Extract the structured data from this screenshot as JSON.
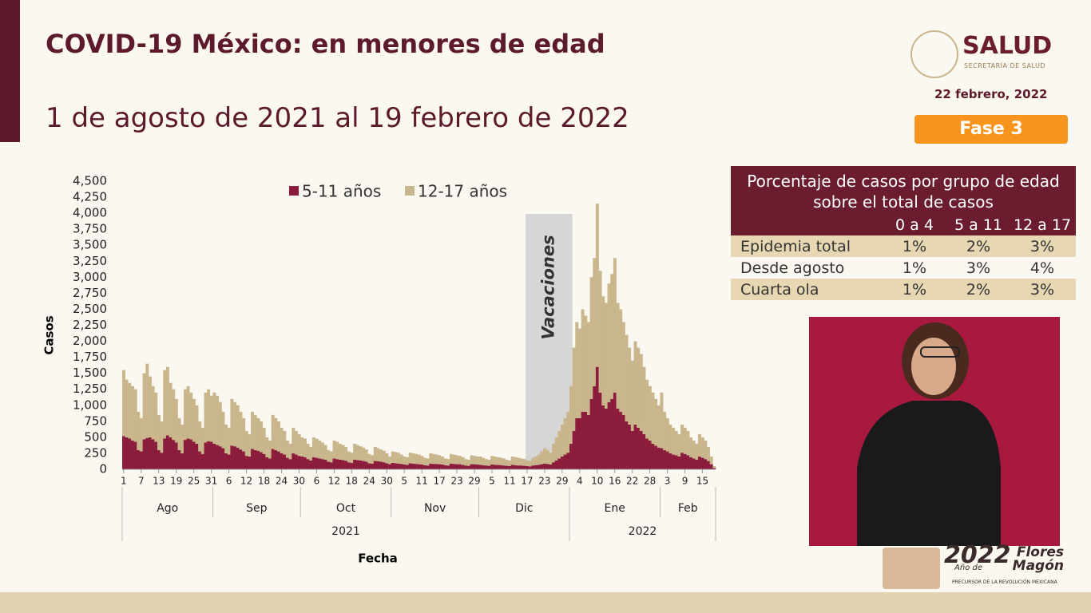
{
  "header": {
    "title": "COVID-19 México: en menores de edad",
    "subtitle": "1 de agosto de 2021 al 19 febrero de 2022",
    "brand": "SALUD",
    "brand_sub": "SECRETARÍA DE SALUD",
    "date": "22 febrero, 2022",
    "phase": "Fase 3"
  },
  "chart_data": {
    "type": "stacked-bar",
    "x_label": "Fecha",
    "y_label": "Casos",
    "categories": [
      "1",
      null,
      null,
      null,
      null,
      null,
      "7",
      null,
      null,
      null,
      null,
      null,
      "13",
      null,
      null,
      null,
      null,
      null,
      "19",
      null,
      null,
      null,
      null,
      null,
      "25",
      null,
      null,
      null,
      null,
      null,
      "31",
      null,
      null,
      null,
      null,
      null,
      "6",
      null,
      null,
      null,
      null,
      null,
      "12",
      null,
      null,
      null,
      null,
      null,
      "18",
      null,
      null,
      null,
      null,
      null,
      "24",
      null,
      null,
      null,
      null,
      null,
      "30",
      null,
      null,
      null,
      null,
      null,
      "6",
      null,
      null,
      null,
      null,
      null,
      "12",
      null,
      null,
      null,
      null,
      null,
      "18",
      null,
      null,
      null,
      null,
      null,
      "24",
      null,
      null,
      null,
      null,
      null,
      "30",
      null,
      null,
      null,
      null,
      null,
      "5",
      null,
      null,
      null,
      null,
      null,
      "11",
      null,
      null,
      null,
      null,
      null,
      "17",
      null,
      null,
      null,
      null,
      null,
      "23",
      null,
      null,
      null,
      null,
      null,
      "29",
      null,
      null,
      null,
      null,
      null,
      "5",
      null,
      null,
      null,
      null,
      null,
      "11",
      null,
      null,
      null,
      null,
      null,
      "17",
      null,
      null,
      null,
      null,
      null,
      "23",
      null,
      null,
      null,
      null,
      null,
      "29",
      null,
      null,
      null,
      null,
      null,
      "4",
      null,
      null,
      null,
      null,
      null,
      "10",
      null,
      null,
      null,
      null,
      null,
      "16",
      null,
      null,
      null,
      null,
      null,
      "22",
      null,
      null,
      null,
      null,
      null,
      "28",
      null,
      null,
      null,
      null,
      null,
      "3",
      null,
      null,
      null,
      null,
      null,
      "9",
      null,
      null,
      null,
      null,
      null,
      "15",
      null,
      null,
      null,
      null
    ],
    "years": [
      {
        "label": "2021",
        "months": [
          "Ago",
          "Sep",
          "Oct",
          "Nov",
          "Dic"
        ]
      },
      {
        "label": "2022",
        "months": [
          "Ene",
          "Feb"
        ]
      }
    ],
    "series": [
      {
        "name": "5-11 años",
        "color": "#8c1c3c",
        "values": [
          520,
          500,
          480,
          450,
          430,
          300,
          280,
          470,
          490,
          500,
          470,
          430,
          300,
          260,
          480,
          530,
          500,
          460,
          420,
          300,
          250,
          460,
          480,
          470,
          430,
          400,
          280,
          240,
          420,
          440,
          430,
          400,
          380,
          360,
          330,
          250,
          230,
          370,
          360,
          340,
          310,
          280,
          210,
          200,
          320,
          300,
          290,
          270,
          240,
          190,
          170,
          320,
          300,
          280,
          250,
          230,
          180,
          160,
          250,
          230,
          210,
          200,
          190,
          160,
          140,
          190,
          180,
          170,
          160,
          150,
          120,
          110,
          170,
          160,
          150,
          145,
          135,
          110,
          100,
          150,
          145,
          140,
          130,
          120,
          95,
          90,
          130,
          125,
          120,
          110,
          95,
          80,
          100,
          95,
          90,
          85,
          75,
          70,
          95,
          90,
          85,
          80,
          75,
          65,
          60,
          90,
          85,
          85,
          80,
          75,
          65,
          60,
          90,
          85,
          80,
          80,
          70,
          60,
          55,
          80,
          80,
          75,
          70,
          65,
          60,
          55,
          75,
          70,
          70,
          65,
          60,
          55,
          50,
          70,
          65,
          60,
          60,
          55,
          50,
          45,
          60,
          65,
          70,
          80,
          90,
          85,
          75,
          110,
          140,
          170,
          200,
          230,
          260,
          400,
          600,
          800,
          800,
          900,
          900,
          850,
          1100,
          1300,
          1600,
          1200,
          1000,
          950,
          1050,
          1100,
          1200,
          950,
          900,
          850,
          750,
          700,
          600,
          700,
          650,
          600,
          550,
          480,
          450,
          400,
          370,
          340,
          330,
          300,
          280,
          250,
          230,
          220,
          200,
          260,
          240,
          220,
          190,
          170,
          150,
          200,
          180,
          160,
          130,
          80,
          20
        ]
      },
      {
        "name": "12-17 años",
        "color": "#c9b68c",
        "values": [
          1030,
          900,
          870,
          850,
          820,
          600,
          520,
          1030,
          1160,
          950,
          830,
          770,
          550,
          490,
          1070,
          1070,
          850,
          790,
          680,
          500,
          450,
          790,
          820,
          730,
          670,
          600,
          470,
          410,
          780,
          810,
          720,
          800,
          770,
          690,
          570,
          450,
          420,
          730,
          690,
          660,
          590,
          520,
          390,
          350,
          580,
          550,
          510,
          480,
          410,
          310,
          280,
          530,
          500,
          470,
          400,
          370,
          270,
          240,
          400,
          370,
          340,
          300,
          290,
          240,
          210,
          310,
          300,
          280,
          260,
          230,
          180,
          170,
          280,
          270,
          250,
          235,
          215,
          170,
          160,
          250,
          235,
          220,
          210,
          190,
          145,
          130,
          220,
          205,
          190,
          180,
          155,
          120,
          180,
          175,
          170,
          145,
          125,
          120,
          165,
          160,
          155,
          150,
          135,
          115,
          110,
          160,
          155,
          145,
          140,
          125,
          105,
          100,
          150,
          145,
          140,
          130,
          120,
          100,
          95,
          140,
          130,
          125,
          130,
          115,
          100,
          95,
          135,
          130,
          120,
          115,
          110,
          95,
          90,
          130,
          125,
          120,
          110,
          105,
          90,
          85,
          120,
          135,
          160,
          200,
          240,
          215,
          185,
          290,
          360,
          430,
          500,
          570,
          640,
          900,
          1300,
          1500,
          1400,
          1600,
          1500,
          1450,
          1900,
          2000,
          2550,
          1900,
          1700,
          1650,
          1850,
          1950,
          2100,
          1650,
          1600,
          1450,
          1350,
          1200,
          1100,
          1300,
          1250,
          1200,
          1050,
          920,
          850,
          800,
          730,
          660,
          870,
          600,
          520,
          450,
          420,
          380,
          350,
          440,
          410,
          380,
          310,
          280,
          250,
          350,
          320,
          290,
          220,
          120,
          30
        ]
      }
    ],
    "ylim": [
      0,
      4500
    ],
    "yticks": [
      0,
      250,
      500,
      750,
      {
        "value": 1000,
        "label": "1,000"
      },
      {
        "value": 1250,
        "label": "1,250"
      },
      {
        "value": 1500,
        "label": "1,500"
      },
      {
        "value": 1750,
        "label": "1,750"
      },
      {
        "value": 2000,
        "label": "2,000"
      },
      {
        "value": 2250,
        "label": "2,250"
      },
      {
        "value": 2500,
        "label": "2,500"
      },
      {
        "value": 2750,
        "label": "2,750"
      },
      {
        "value": 3000,
        "label": "3,000"
      },
      {
        "value": 3250,
        "label": "3,250"
      },
      {
        "value": 3500,
        "label": "3,500"
      },
      {
        "value": 3750,
        "label": "3,750"
      },
      {
        "value": 4000,
        "label": "4,000"
      },
      {
        "value": 4250,
        "label": "4,250"
      },
      {
        "value": 4500,
        "label": "4,500"
      }
    ],
    "grid": false,
    "annotation": {
      "text": "Vacaciones",
      "x_range": [
        138,
        153
      ]
    }
  },
  "table": {
    "title": "Porcentaje de casos por grupo de edad sobre el total de casos",
    "columns": [
      "0 a 4",
      "5 a 11",
      "12 a 17"
    ],
    "rows": [
      [
        "Epidemia total",
        "1%",
        "2%",
        "3%"
      ],
      [
        "Desde agosto",
        "1%",
        "3%",
        "4%"
      ],
      [
        "Cuarta ola",
        "1%",
        "2%",
        "3%"
      ]
    ]
  },
  "footer": {
    "year": "2022",
    "prefix": "Año de",
    "name": "Flores Magón",
    "tagline": "PRECURSOR DE LA REVOLUCIÓN MEXICANA"
  }
}
